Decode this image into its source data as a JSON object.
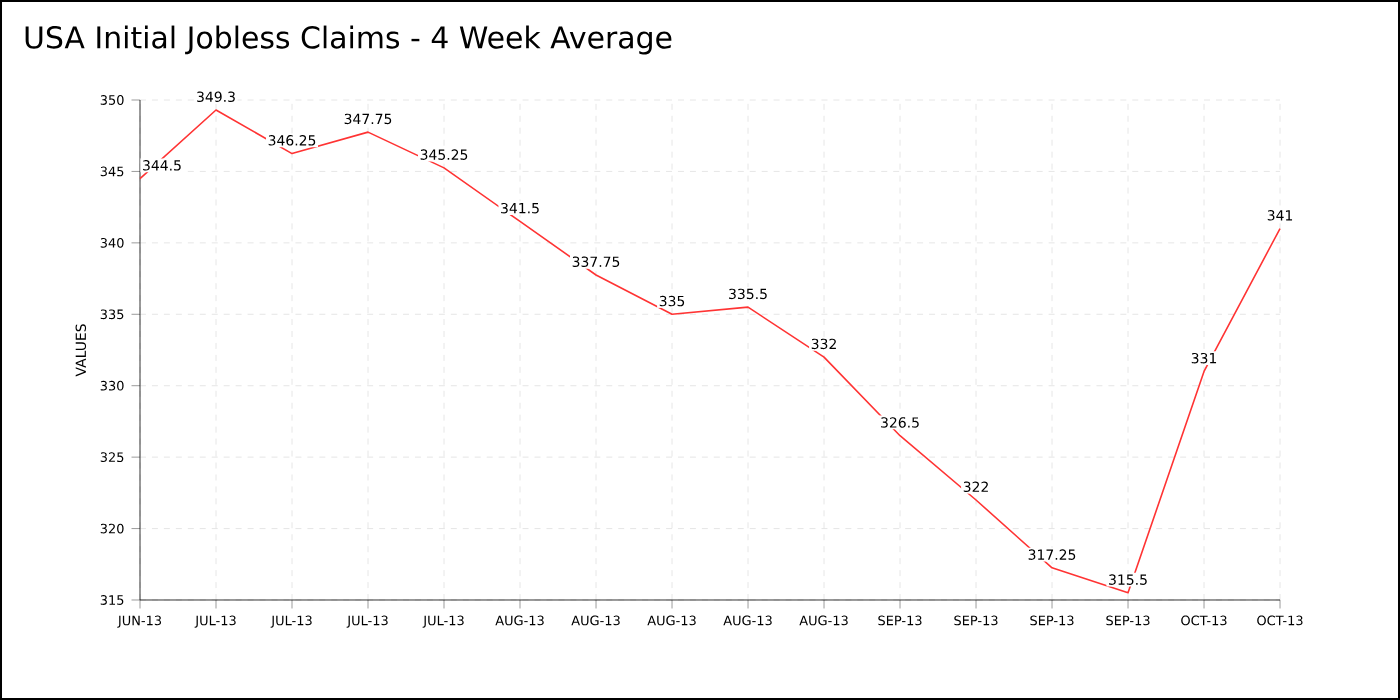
{
  "chart_data": {
    "type": "line",
    "title": "USA Initial Jobless Claims - 4 Week Average",
    "ylabel": "VALUES",
    "categories": [
      "JUN-13",
      "JUL-13",
      "JUL-13",
      "JUL-13",
      "JUL-13",
      "AUG-13",
      "AUG-13",
      "AUG-13",
      "AUG-13",
      "AUG-13",
      "SEP-13",
      "SEP-13",
      "SEP-13",
      "SEP-13",
      "OCT-13",
      "OCT-13"
    ],
    "values": [
      344.5,
      349.3,
      346.25,
      347.75,
      345.25,
      341.5,
      337.75,
      335,
      335.5,
      332,
      326.5,
      322,
      317.25,
      315.5,
      331,
      341
    ],
    "color": "#ff3333",
    "ylim": [
      315,
      350
    ],
    "yticks": [
      315,
      320,
      325,
      330,
      335,
      340,
      345,
      350
    ],
    "grid": true,
    "data_labels": true,
    "marker": "none",
    "line_style": "solid"
  }
}
